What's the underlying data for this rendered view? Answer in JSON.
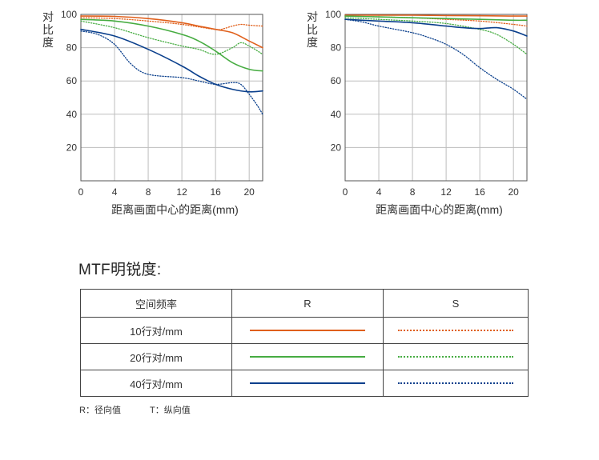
{
  "chart_data": [
    {
      "type": "line",
      "ylabel": "对比度",
      "xlabel": "距离画面中心的距离(mm)",
      "xlim": [
        0,
        21.6
      ],
      "ylim": [
        0,
        100
      ],
      "x_ticks": [
        "0",
        "4",
        "8",
        "12",
        "16",
        "20"
      ],
      "y_ticks": [
        "20",
        "40",
        "60",
        "80",
        "100"
      ],
      "grid": true,
      "series": [
        {
          "freq": "10",
          "mode": "R",
          "color": "#e0601c",
          "x": [
            0,
            4,
            8,
            12,
            14,
            16,
            18,
            20,
            21.6
          ],
          "y": [
            99,
            98.8,
            97.5,
            95,
            93,
            91,
            89,
            84,
            80
          ]
        },
        {
          "freq": "10",
          "mode": "S",
          "color": "#e0601c",
          "x": [
            0,
            4,
            8,
            12,
            16,
            17,
            18,
            19,
            20,
            21.6
          ],
          "y": [
            98,
            97.5,
            96,
            94,
            91,
            91.5,
            93,
            94,
            93.5,
            93
          ]
        },
        {
          "freq": "20",
          "mode": "R",
          "color": "#46ac41",
          "x": [
            0,
            4,
            8,
            12,
            14,
            16,
            18,
            20,
            21.6
          ],
          "y": [
            97,
            96,
            93,
            88,
            84,
            78,
            71,
            67,
            66
          ]
        },
        {
          "freq": "20",
          "mode": "S",
          "color": "#46ac41",
          "x": [
            0,
            4,
            8,
            12,
            14,
            16,
            18,
            19,
            20,
            21,
            21.6
          ],
          "y": [
            96,
            92,
            86,
            81,
            79,
            76,
            80,
            83,
            81,
            78,
            76
          ]
        },
        {
          "freq": "40",
          "mode": "R",
          "color": "#0a3f8c",
          "x": [
            0,
            4,
            8,
            12,
            14,
            16,
            18,
            20,
            21.6
          ],
          "y": [
            91,
            87,
            79,
            69,
            63,
            58,
            55,
            53.5,
            54
          ]
        },
        {
          "freq": "40",
          "mode": "S",
          "color": "#0a3f8c",
          "x": [
            0,
            2,
            4,
            6,
            8,
            12,
            14,
            16,
            18,
            19,
            20,
            21,
            21.6
          ],
          "y": [
            90,
            88,
            82,
            70,
            64,
            62,
            60,
            58,
            59,
            58,
            52,
            45,
            40
          ]
        }
      ]
    },
    {
      "type": "line",
      "ylabel": "对比度",
      "xlabel": "距离画面中心的距离(mm)",
      "xlim": [
        0,
        21.6
      ],
      "ylim": [
        0,
        100
      ],
      "x_ticks": [
        "0",
        "4",
        "8",
        "12",
        "16",
        "20"
      ],
      "y_ticks": [
        "20",
        "40",
        "60",
        "80",
        "100"
      ],
      "grid": true,
      "series": [
        {
          "freq": "10",
          "mode": "R",
          "color": "#e0601c",
          "x": [
            0,
            4,
            8,
            12,
            16,
            20,
            21.6
          ],
          "y": [
            99.5,
            99.5,
            99.5,
            99.3,
            99.2,
            99,
            99
          ]
        },
        {
          "freq": "10",
          "mode": "S",
          "color": "#e0601c",
          "x": [
            0,
            4,
            8,
            12,
            16,
            20,
            21.6
          ],
          "y": [
            99,
            98.5,
            98,
            97,
            96,
            94,
            93
          ]
        },
        {
          "freq": "20",
          "mode": "R",
          "color": "#46ac41",
          "x": [
            0,
            4,
            8,
            12,
            16,
            20,
            21.6
          ],
          "y": [
            99,
            98.5,
            98,
            97.5,
            97,
            96.5,
            96.5
          ]
        },
        {
          "freq": "20",
          "mode": "S",
          "color": "#46ac41",
          "x": [
            0,
            4,
            8,
            12,
            16,
            18,
            20,
            21.6
          ],
          "y": [
            98,
            97,
            96,
            94.5,
            91,
            88,
            82,
            76
          ]
        },
        {
          "freq": "40",
          "mode": "R",
          "color": "#0a3f8c",
          "x": [
            0,
            4,
            8,
            12,
            14,
            16,
            18,
            20,
            21.6
          ],
          "y": [
            97,
            96,
            95,
            93,
            92,
            91.5,
            92,
            90,
            87
          ]
        },
        {
          "freq": "40",
          "mode": "S",
          "color": "#0a3f8c",
          "x": [
            0,
            2,
            4,
            8,
            10,
            12,
            14,
            16,
            18,
            20,
            21.6
          ],
          "y": [
            97,
            95.5,
            93,
            89,
            86,
            82,
            76,
            68,
            61,
            55,
            49
          ]
        }
      ]
    }
  ],
  "mtf_section": {
    "title": "MTF明锐度:",
    "table_headers": [
      "空间频率",
      "R",
      "S"
    ],
    "rows": [
      {
        "label": "10行对/mm",
        "color": "#e0601c"
      },
      {
        "label": "20行对/mm",
        "color": "#46ac41"
      },
      {
        "label": "40行对/mm",
        "color": "#0a3f8c"
      }
    ],
    "notes": [
      "R：径向值",
      "T：纵向值"
    ]
  }
}
